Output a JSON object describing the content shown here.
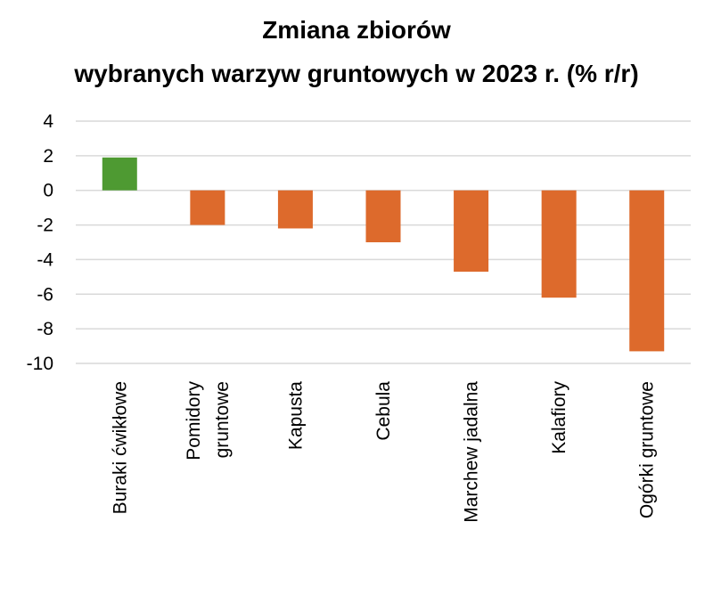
{
  "chart_data": {
    "type": "bar",
    "title_lines": [
      "Zmiana zbiorów",
      "wybranych warzyw gruntowych w 2023 r. (% r/r)"
    ],
    "categories": [
      [
        "Buraki ćwikłowe"
      ],
      [
        "Pomidory",
        "gruntowe"
      ],
      [
        "Kapusta"
      ],
      [
        "Cebula"
      ],
      [
        "Marchew jadalna"
      ],
      [
        "Kalafiory"
      ],
      [
        "Ogórki gruntowe"
      ]
    ],
    "values": [
      1.9,
      -2.0,
      -2.2,
      -3.0,
      -4.7,
      -6.2,
      -9.3
    ],
    "ylim": [
      -10,
      4
    ],
    "yticks": [
      4,
      2,
      0,
      -2,
      -4,
      -6,
      -8,
      -10
    ],
    "grid": true,
    "colors": {
      "positive": "#4e9a32",
      "negative": "#dd6a2c",
      "grid": "#d9d9d9"
    }
  }
}
